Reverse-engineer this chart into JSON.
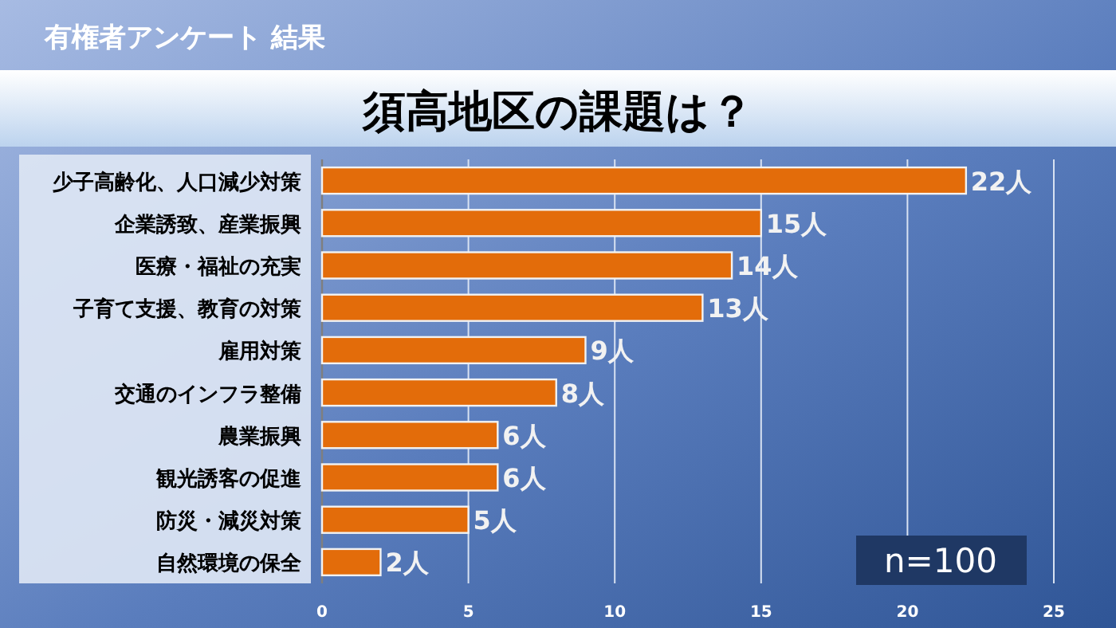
{
  "chart_data": {
    "type": "bar",
    "orientation": "horizontal",
    "title": "有権者アンケート 結果",
    "subtitle": "須高地区の課題は？",
    "categories": [
      "少子高齢化、人口減少対策",
      "企業誘致、産業振興",
      "医療・福祉の充実",
      "子育て支援、教育の対策",
      "雇用対策",
      "交通のインフラ整備",
      "農業振興",
      "観光誘客の促進",
      "防災・減災対策",
      "自然環境の保全"
    ],
    "values": [
      22,
      15,
      14,
      13,
      9,
      8,
      6,
      6,
      5,
      2
    ],
    "value_labels": [
      "22人",
      "15人",
      "14人",
      "13人",
      "9人",
      "8人",
      "6人",
      "6人",
      "5人",
      "2人"
    ],
    "color": "#e36c0a",
    "xlim": [
      0,
      25
    ],
    "xticks": [
      0,
      5,
      10,
      15,
      20,
      25
    ],
    "grid": "x",
    "annotations": [
      "n=100"
    ]
  }
}
